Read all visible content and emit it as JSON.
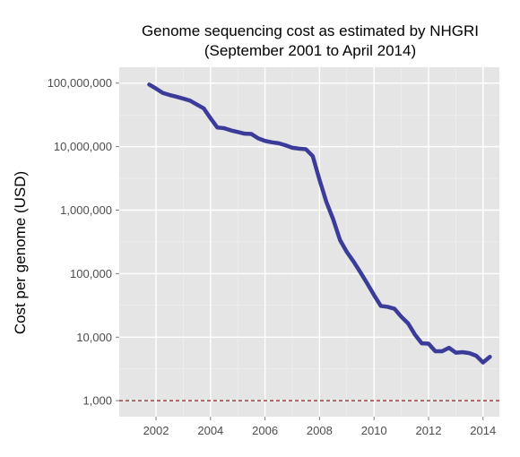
{
  "chart_data": {
    "type": "line",
    "title": "Genome sequencing cost as estimated by NHGRI",
    "subtitle": "(September 2001 to April 2014)",
    "xlabel": "",
    "ylabel": "Cost per genome (USD)",
    "y_scale": "log10",
    "xlim": [
      2000.65,
      2014.6
    ],
    "ylim": [
      560,
      178000000
    ],
    "x_ticks": [
      2002,
      2004,
      2006,
      2008,
      2010,
      2012,
      2014
    ],
    "x_tick_labels": [
      "2002",
      "2004",
      "2006",
      "2008",
      "2010",
      "2012",
      "2014"
    ],
    "y_ticks": [
      1000,
      10000,
      100000,
      1000000,
      10000000,
      100000000
    ],
    "y_tick_labels": [
      "1,000",
      "10,000",
      "100,000",
      "1,000,000",
      "10,000,000",
      "100,000,000"
    ],
    "grid": true,
    "background_color": "#e5e5e5",
    "grid_color": "#ffffff",
    "line_color": "#3b3b9a",
    "reference_line": {
      "y": 1000,
      "style": "dashed",
      "color": "#8b1a1a"
    },
    "series": [
      {
        "x": [
          2001.75,
          2002.0,
          2002.25,
          2002.5,
          2002.75,
          2003.0,
          2003.25,
          2003.5,
          2003.75,
          2004.0,
          2004.25,
          2004.5,
          2004.75,
          2005.0,
          2005.25,
          2005.5,
          2005.75,
          2006.0,
          2006.25,
          2006.5,
          2006.75,
          2007.0,
          2007.25,
          2007.5,
          2007.75,
          2008.0,
          2008.25,
          2008.5,
          2008.75,
          2009.0,
          2009.25,
          2009.5,
          2009.75,
          2010.0,
          2010.25,
          2010.5,
          2010.75,
          2011.0,
          2011.25,
          2011.5,
          2011.75,
          2012.0,
          2012.25,
          2012.5,
          2012.75,
          2013.0,
          2013.25,
          2013.5,
          2013.75,
          2014.0,
          2014.25
        ],
        "y": [
          95000000,
          82000000,
          70000000,
          65000000,
          61000000,
          57000000,
          53000000,
          46000000,
          40000000,
          28000000,
          20000000,
          19500000,
          18000000,
          17000000,
          16000000,
          15800000,
          13500000,
          12300000,
          11700000,
          11300000,
          10500000,
          9600000,
          9300000,
          9100000,
          7100000,
          3000000,
          1350000,
          720000,
          340000,
          220000,
          155000,
          105000,
          70000,
          46000,
          31000,
          30000,
          28000,
          21000,
          16500,
          11000,
          8000,
          7900,
          6000,
          6000,
          6800,
          5700,
          5800,
          5600,
          5100,
          4000,
          4900
        ]
      }
    ]
  }
}
